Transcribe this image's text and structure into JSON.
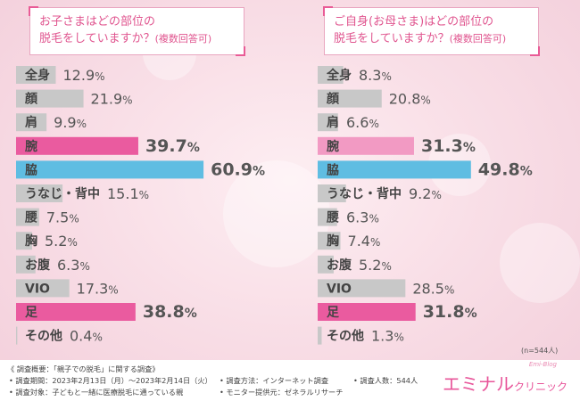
{
  "chart_data": [
    {
      "type": "bar",
      "title_lines": [
        "お子さまはどの部位の",
        "脱毛をしていますか？"
      ],
      "title_suffix": "(複数回答可)",
      "categories": [
        "全身",
        "顔",
        "肩",
        "腕",
        "脇",
        "うなじ・背中",
        "腰",
        "胸",
        "お腹",
        "VIO",
        "足",
        "その他"
      ],
      "values": [
        12.9,
        21.9,
        9.9,
        39.7,
        60.9,
        15.1,
        7.5,
        5.2,
        6.3,
        17.3,
        38.8,
        0.4
      ],
      "highlight": [
        "none",
        "none",
        "none",
        "pink",
        "blue",
        "none",
        "none",
        "none",
        "none",
        "none",
        "pink",
        "none"
      ],
      "unit": "%"
    },
    {
      "type": "bar",
      "title_lines": [
        "ご自身(お母さま)はどの部位の",
        "脱毛をしていますか？"
      ],
      "title_suffix": "(複数回答可)",
      "categories": [
        "全身",
        "顔",
        "肩",
        "腕",
        "脇",
        "うなじ・背中",
        "腰",
        "胸",
        "お腹",
        "VIO",
        "足",
        "その他"
      ],
      "values": [
        8.3,
        20.8,
        6.6,
        31.3,
        49.8,
        9.2,
        6.3,
        7.4,
        5.2,
        28.5,
        31.8,
        1.3
      ],
      "highlight": [
        "none",
        "none",
        "none",
        "lightpink",
        "blue",
        "none",
        "none",
        "none",
        "none",
        "none",
        "pink",
        "none"
      ],
      "unit": "%"
    }
  ],
  "colors": {
    "gray": "#c8c8c8",
    "pink": "#ea5b9f",
    "lightpink": "#f29ac3",
    "blue": "#5fbde2",
    "text": "#555555",
    "highlight_text": "#e0559a"
  },
  "sample_note": "(n=544人)",
  "footer": {
    "heading": "《 調査概要：「親子での脱毛」に関する調査》",
    "period": "• 調査期間：2023年2月13日（月）〜2023年2月14日（火）",
    "target": "• 調査対象：子どもと一緒に医療脱毛に通っている親",
    "method": "• 調査方法：インターネット調査",
    "provider": "• モニター提供元：ゼネラルリサーチ",
    "count": "• 調査人数：544人"
  },
  "logo": {
    "main": "エミナル",
    "sub": "クリニック",
    "tag": "Emi-Blog"
  }
}
